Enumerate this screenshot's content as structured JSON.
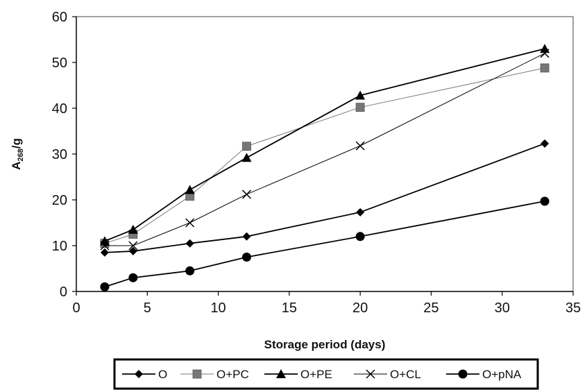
{
  "chart_data": {
    "type": "line",
    "title": "",
    "xlabel": "Storage period (days)",
    "ylabel_main": "A",
    "ylabel_sub": "268",
    "ylabel_suffix": "/g",
    "xlim": [
      0,
      35
    ],
    "ylim": [
      0,
      60
    ],
    "x_ticks": [
      "0",
      "5",
      "10",
      "15",
      "20",
      "25",
      "30",
      "35"
    ],
    "y_ticks": [
      "0",
      "10",
      "20",
      "30",
      "40",
      "50",
      "60"
    ],
    "grid": false,
    "legend_position": "bottom",
    "x": [
      2,
      4,
      8,
      12,
      20,
      33
    ],
    "series": [
      {
        "name": "O",
        "marker": "diamond",
        "line": "#000000",
        "fill": "#000000",
        "values": [
          8.5,
          8.8,
          10.5,
          12,
          17.3,
          32.3
        ]
      },
      {
        "name": "O+PC",
        "marker": "square",
        "line": "#777777",
        "fill": "#777777",
        "values": [
          10.5,
          12.5,
          20.8,
          31.7,
          40.2,
          48.8
        ]
      },
      {
        "name": "O+PE",
        "marker": "triangle",
        "line": "#000000",
        "fill": "#000000",
        "values": [
          11,
          13.5,
          22.2,
          29.2,
          42.8,
          53
        ]
      },
      {
        "name": "O+CL",
        "marker": "x",
        "line": "#000000",
        "fill": "#000000",
        "values": [
          10,
          10,
          15,
          21.2,
          31.8,
          52
        ]
      },
      {
        "name": "O+pNA",
        "marker": "circle",
        "line": "#000000",
        "fill": "#000000",
        "values": [
          1,
          3,
          4.5,
          7.5,
          12,
          19.7
        ]
      }
    ]
  }
}
